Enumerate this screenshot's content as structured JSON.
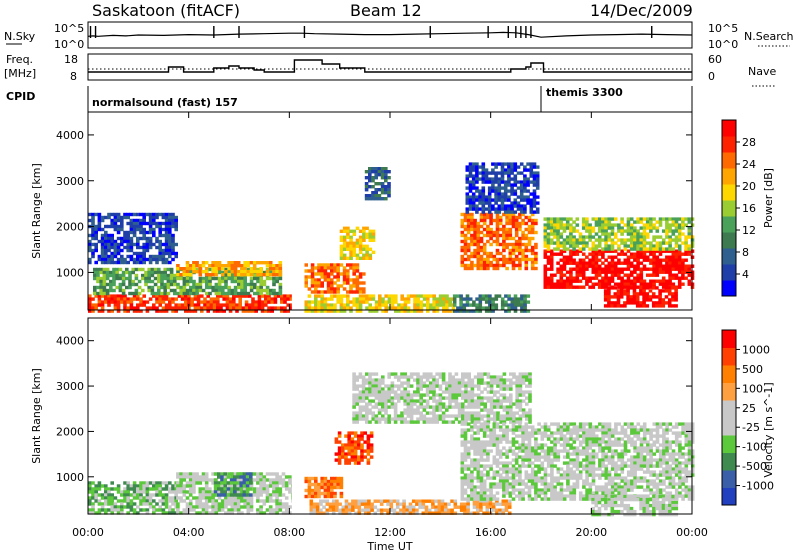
{
  "header": {
    "station": "Saskatoon (fitACF)",
    "beam": "Beam 12",
    "date": "14/Dec/2009"
  },
  "strip_labels": {
    "nsky": "N.Sky",
    "nsearch": "N.Search",
    "freq_line1": "Freq.",
    "freq_line2": "[MHz]",
    "nave": "Nave",
    "cpid": "CPID"
  },
  "strip_ticks": {
    "nsky_left": [
      "10^5",
      "10^0"
    ],
    "nsky_right": [
      "10^5",
      "10^0"
    ],
    "freq_left": [
      "18",
      "8"
    ],
    "nave_right": [
      "60",
      "0"
    ]
  },
  "cpid_segments": [
    {
      "label": "normalsound (fast) 157",
      "start_hour": 0
    },
    {
      "label": "themis 3300",
      "start_hour": 18
    }
  ],
  "colors": {
    "power_scale": [
      "#0000ff",
      "#1f3ea8",
      "#2f5f8f",
      "#3d7a4f",
      "#49a15a",
      "#9acd32",
      "#ffd700",
      "#ffa500",
      "#ff6a00",
      "#ff2200",
      "#ff0000"
    ],
    "velocity_scale": [
      "#2040c0",
      "#3a5ea8",
      "#3f8a4f",
      "#5cc83c",
      "#c8c8c8",
      "#c8c8c8",
      "#ffa040",
      "#ff7f00",
      "#ff4000",
      "#ff0000"
    ]
  },
  "chart_data": [
    {
      "type": "line",
      "name_hint": "nsky-strip",
      "x_unit": "hour",
      "xlim": [
        0,
        24
      ],
      "scale": "log",
      "ylim_label": [
        "10^0",
        "10^5"
      ],
      "note_values": "shown as trace level (log units 0-5)",
      "x": [
        0,
        0.2,
        0.4,
        1.0,
        1.5,
        2.0,
        3.0,
        4.0,
        5.0,
        6.0,
        7.0,
        8.0,
        8.5,
        9.0,
        10.0,
        11.0,
        12.0,
        13.0,
        14.0,
        15.0,
        16.0,
        16.5,
        17.0,
        17.5,
        18.0,
        19.0,
        20.0,
        21.0,
        22.0,
        23.0,
        24.0
      ],
      "y": [
        2.2,
        2.3,
        2.2,
        2.4,
        2.3,
        2.5,
        2.4,
        2.6,
        2.5,
        2.7,
        2.8,
        2.9,
        2.9,
        2.8,
        2.7,
        2.6,
        2.6,
        2.7,
        2.8,
        2.9,
        3.0,
        3.1,
        3.0,
        2.6,
        2.0,
        2.3,
        2.5,
        2.6,
        2.7,
        2.6,
        2.5
      ],
      "spikes_hour": [
        0.1,
        0.3,
        5.0,
        6.0,
        8.6,
        13.6,
        15.9,
        16.7,
        17.0,
        17.2,
        17.4,
        17.6,
        22.4
      ]
    },
    {
      "type": "line",
      "name_hint": "freq-strip",
      "x_unit": "hour",
      "xlim": [
        0,
        24
      ],
      "ylim": [
        8,
        18
      ],
      "ylabel": "Freq. [MHz]",
      "x": [
        0,
        1,
        2,
        3,
        3.2,
        3.8,
        4.0,
        5.0,
        5.6,
        6.0,
        6.6,
        7.0,
        8.0,
        8.2,
        8.7,
        9.3,
        9.5,
        10.0,
        11.0,
        12.0,
        13.0,
        14.0,
        15.0,
        16.0,
        16.8,
        17.0,
        17.4,
        17.6,
        18.0,
        18.1,
        20.0,
        22.0,
        24.0
      ],
      "y": [
        10.5,
        10.5,
        10.5,
        10.5,
        13.0,
        10.5,
        10.5,
        12.5,
        13.5,
        12.5,
        11.5,
        10.5,
        10.5,
        16.5,
        16.5,
        14.5,
        14.5,
        12.5,
        10.5,
        10.5,
        10.5,
        10.5,
        10.5,
        10.5,
        12.0,
        12.0,
        13.0,
        15.0,
        15.0,
        10.5,
        10.5,
        10.5,
        10.5
      ],
      "dotted_nave_level": 12.0
    },
    {
      "type": "heatmap",
      "name_hint": "power",
      "x_unit": "hour",
      "xlim": [
        0,
        24
      ],
      "ylim": [
        180,
        4500
      ],
      "ylabel": "Slant Range [km]",
      "colorbar_label": "Power [dB]",
      "colorbar_ticks": [
        "28",
        "24",
        "20",
        "16",
        "12",
        "8",
        "4"
      ],
      "yticks": [
        "1000",
        "2000",
        "3000",
        "4000"
      ],
      "blobs": [
        {
          "x0": 0,
          "x1": 8.1,
          "r0": 180,
          "r1": 520,
          "level": 9
        },
        {
          "x0": 0.2,
          "x1": 7.6,
          "r0": 520,
          "r1": 1100,
          "level": 4
        },
        {
          "x0": 3.5,
          "x1": 7.6,
          "r0": 950,
          "r1": 1250,
          "level": 7
        },
        {
          "x0": 0,
          "x1": 3.5,
          "r0": 1200,
          "r1": 2300,
          "level": 1
        },
        {
          "x0": 8.6,
          "x1": 14.5,
          "r0": 180,
          "r1": 520,
          "level": 6
        },
        {
          "x0": 8.6,
          "x1": 11.0,
          "r0": 600,
          "r1": 1200,
          "level": 8
        },
        {
          "x0": 10.0,
          "x1": 11.3,
          "r0": 1300,
          "r1": 2000,
          "level": 6
        },
        {
          "x0": 11.0,
          "x1": 12.0,
          "r0": 2600,
          "r1": 3300,
          "level": 2
        },
        {
          "x0": 14.5,
          "x1": 17.5,
          "r0": 180,
          "r1": 520,
          "level": 3
        },
        {
          "x0": 14.8,
          "x1": 17.8,
          "r0": 1100,
          "r1": 2300,
          "level": 8
        },
        {
          "x0": 15.0,
          "x1": 17.8,
          "r0": 2300,
          "r1": 3400,
          "level": 1
        },
        {
          "x0": 18.1,
          "x1": 24,
          "r0": 700,
          "r1": 1500,
          "level": 10
        },
        {
          "x0": 18.1,
          "x1": 24,
          "r0": 1500,
          "r1": 2200,
          "level": 5
        },
        {
          "x0": 20.5,
          "x1": 23.4,
          "r0": 300,
          "r1": 700,
          "level": 10
        }
      ]
    },
    {
      "type": "heatmap",
      "name_hint": "velocity",
      "x_unit": "hour",
      "xlim": [
        0,
        24
      ],
      "ylim": [
        180,
        4500
      ],
      "ylabel": "Slant Range [km]",
      "colorbar_label": "Velocity [m s^-1]",
      "colorbar_ticks": [
        "1000",
        "500",
        "100",
        "25",
        "-25",
        "-100",
        "-500",
        "-1000"
      ],
      "yticks": [
        "1000",
        "2000",
        "3000",
        "4000"
      ],
      "blobs": [
        {
          "x0": 0,
          "x1": 3.5,
          "r0": 180,
          "r1": 900,
          "level": 3
        },
        {
          "x0": 3.5,
          "x1": 8.1,
          "r0": 180,
          "r1": 1100,
          "level": 4
        },
        {
          "x0": 8.6,
          "x1": 10.0,
          "r0": 600,
          "r1": 1000,
          "level": 7
        },
        {
          "x0": 9.8,
          "x1": 11.2,
          "r0": 1300,
          "r1": 2000,
          "level": 8
        },
        {
          "x0": 8.8,
          "x1": 16.8,
          "r0": 180,
          "r1": 500,
          "level": 6
        },
        {
          "x0": 10.5,
          "x1": 17.5,
          "r0": 2200,
          "r1": 3300,
          "level": 4
        },
        {
          "x0": 14.8,
          "x1": 24,
          "r0": 500,
          "r1": 2200,
          "level": 4
        },
        {
          "x0": 20.0,
          "x1": 23.4,
          "r0": 180,
          "r1": 600,
          "level": 4
        },
        {
          "x0": 5.0,
          "x1": 6.5,
          "r0": 600,
          "r1": 1100,
          "level": 2
        }
      ]
    }
  ],
  "x_ticks": [
    "00:00",
    "04:00",
    "08:00",
    "12:00",
    "16:00",
    "20:00",
    "00:00"
  ],
  "x_label": "Time UT"
}
